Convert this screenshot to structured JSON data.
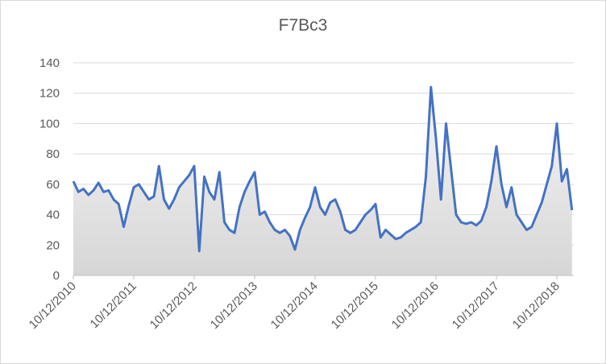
{
  "chart_data": {
    "type": "area-line",
    "title": "F7Bc3",
    "categories": [
      "10/12/2010",
      null,
      null,
      null,
      null,
      null,
      null,
      null,
      null,
      null,
      null,
      null,
      "10/12/2011",
      null,
      null,
      null,
      null,
      null,
      null,
      null,
      null,
      null,
      null,
      null,
      "10/12/2012",
      null,
      null,
      null,
      null,
      null,
      null,
      null,
      null,
      null,
      null,
      null,
      "10/12/2013",
      null,
      null,
      null,
      null,
      null,
      null,
      null,
      null,
      null,
      null,
      null,
      "10/12/2014",
      null,
      null,
      null,
      null,
      null,
      null,
      null,
      null,
      null,
      null,
      null,
      "10/12/2015",
      null,
      null,
      null,
      null,
      null,
      null,
      null,
      null,
      null,
      null,
      null,
      "10/12/2016",
      null,
      null,
      null,
      null,
      null,
      null,
      null,
      null,
      null,
      null,
      null,
      "10/12/2017",
      null,
      null,
      null,
      null,
      null,
      null,
      null,
      null,
      null,
      null,
      null,
      "10/12/2018",
      null,
      null,
      null
    ],
    "values": [
      62,
      55,
      57,
      53,
      56,
      61,
      55,
      56,
      50,
      47,
      32,
      46,
      58,
      60,
      55,
      50,
      52,
      72,
      50,
      44,
      50,
      58,
      62,
      66,
      72,
      16,
      65,
      55,
      50,
      68,
      35,
      30,
      28,
      45,
      55,
      62,
      68,
      40,
      42,
      35,
      30,
      28,
      30,
      26,
      17,
      30,
      38,
      45,
      58,
      45,
      40,
      48,
      50,
      42,
      30,
      28,
      30,
      35,
      40,
      43,
      47,
      25,
      30,
      27,
      24,
      25,
      28,
      30,
      32,
      35,
      65,
      124,
      90,
      50,
      100,
      70,
      40,
      35,
      34,
      35,
      33,
      36,
      45,
      62,
      85,
      60,
      45,
      58,
      40,
      35,
      30,
      32,
      40,
      48,
      60,
      72,
      100,
      62,
      70,
      43
    ],
    "color": "#4472c4",
    "ylim": [
      0,
      140
    ],
    "yticks": [
      0,
      20,
      40,
      60,
      80,
      100,
      120,
      140
    ],
    "grid": true
  }
}
